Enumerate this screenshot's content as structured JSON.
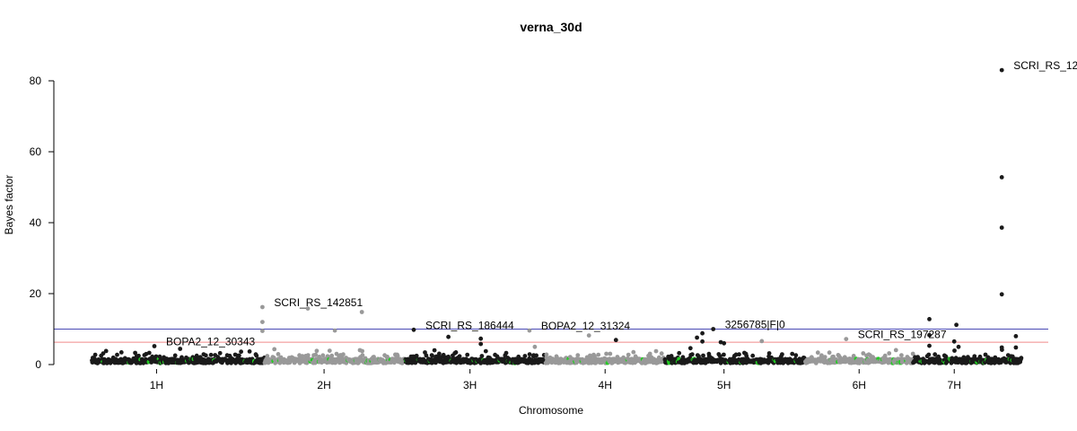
{
  "chart_data": {
    "type": "scatter",
    "title": "verna_30d",
    "xlabel": "Chromosome",
    "ylabel": "Bayes factor",
    "ylim": [
      0,
      80
    ],
    "yticks": [
      0,
      20,
      40,
      60,
      80
    ],
    "chromosomes": [
      {
        "name": "1H",
        "start": 0,
        "end": 1.6,
        "tick": 0.6,
        "color": "#1a1a1a"
      },
      {
        "name": "2H",
        "start": 1.6,
        "end": 2.9,
        "tick": 2.15,
        "color": "#999999"
      },
      {
        "name": "3H",
        "start": 2.9,
        "end": 4.2,
        "tick": 3.5,
        "color": "#1a1a1a"
      },
      {
        "name": "4H",
        "start": 4.2,
        "end": 5.3,
        "tick": 4.75,
        "color": "#999999"
      },
      {
        "name": "5H",
        "start": 5.3,
        "end": 6.6,
        "tick": 5.85,
        "color": "#1a1a1a"
      },
      {
        "name": "6H",
        "start": 6.6,
        "end": 7.6,
        "tick": 7.1,
        "color": "#999999"
      },
      {
        "name": "7H",
        "start": 7.6,
        "end": 8.6,
        "tick": 7.98,
        "color": "#1a1a1a"
      }
    ],
    "x_range": [
      -0.35,
      8.85
    ],
    "thresholds": [
      {
        "value": 10,
        "color": "#4a4ab4"
      },
      {
        "value": 6.3,
        "color": "#f08a8a"
      }
    ],
    "highlight_color": "#22cc22",
    "notable_points": [
      {
        "x": 0.58,
        "y": 5.2,
        "color": "#1a1a1a"
      },
      {
        "x": 1.58,
        "y": 16.2,
        "color": "#999999"
      },
      {
        "x": 1.58,
        "y": 12.0,
        "color": "#999999"
      },
      {
        "x": 1.58,
        "y": 9.5,
        "color": "#999999"
      },
      {
        "x": 2.0,
        "y": 15.8,
        "color": "#999999"
      },
      {
        "x": 2.25,
        "y": 9.6,
        "color": "#999999"
      },
      {
        "x": 2.5,
        "y": 14.8,
        "color": "#999999"
      },
      {
        "x": 2.98,
        "y": 9.8,
        "color": "#1a1a1a"
      },
      {
        "x": 3.3,
        "y": 7.8,
        "color": "#1a1a1a"
      },
      {
        "x": 3.6,
        "y": 7.3,
        "color": "#1a1a1a"
      },
      {
        "x": 3.6,
        "y": 5.8,
        "color": "#1a1a1a"
      },
      {
        "x": 4.05,
        "y": 9.6,
        "color": "#999999"
      },
      {
        "x": 4.1,
        "y": 5.0,
        "color": "#999999"
      },
      {
        "x": 4.6,
        "y": 8.2,
        "color": "#999999"
      },
      {
        "x": 4.85,
        "y": 6.9,
        "color": "#1a1a1a"
      },
      {
        "x": 5.6,
        "y": 7.6,
        "color": "#1a1a1a"
      },
      {
        "x": 5.65,
        "y": 8.8,
        "color": "#1a1a1a"
      },
      {
        "x": 5.65,
        "y": 6.5,
        "color": "#1a1a1a"
      },
      {
        "x": 5.75,
        "y": 10.0,
        "color": "#1a1a1a"
      },
      {
        "x": 5.82,
        "y": 6.3,
        "color": "#1a1a1a"
      },
      {
        "x": 5.85,
        "y": 6.0,
        "color": "#1a1a1a"
      },
      {
        "x": 6.2,
        "y": 6.6,
        "color": "#999999"
      },
      {
        "x": 6.98,
        "y": 7.2,
        "color": "#999999"
      },
      {
        "x": 7.75,
        "y": 12.8,
        "color": "#1a1a1a"
      },
      {
        "x": 7.75,
        "y": 8.3,
        "color": "#1a1a1a"
      },
      {
        "x": 7.75,
        "y": 5.3,
        "color": "#1a1a1a"
      },
      {
        "x": 8.0,
        "y": 11.2,
        "color": "#1a1a1a"
      },
      {
        "x": 7.98,
        "y": 6.5,
        "color": "#1a1a1a"
      },
      {
        "x": 8.02,
        "y": 5.0,
        "color": "#1a1a1a"
      },
      {
        "x": 8.42,
        "y": 83.0,
        "color": "#1a1a1a"
      },
      {
        "x": 8.42,
        "y": 52.8,
        "color": "#1a1a1a"
      },
      {
        "x": 8.42,
        "y": 38.6,
        "color": "#1a1a1a"
      },
      {
        "x": 8.42,
        "y": 19.8,
        "color": "#1a1a1a"
      },
      {
        "x": 8.42,
        "y": 4.8,
        "color": "#1a1a1a"
      },
      {
        "x": 8.55,
        "y": 8.0,
        "color": "#1a1a1a"
      },
      {
        "x": 8.55,
        "y": 4.8,
        "color": "#1a1a1a"
      }
    ],
    "annotations": [
      {
        "text": "SCRI_RS_12",
        "x": 8.42,
        "y": 83.0
      },
      {
        "text": "SCRI_RS_142851",
        "x": 1.58,
        "y": 16.2
      },
      {
        "text": "SCRI_RS_186444",
        "x": 2.98,
        "y": 9.8
      },
      {
        "text": "BOPA2_12_31324",
        "x": 4.05,
        "y": 9.6
      },
      {
        "text": "3256785|F|0",
        "x": 5.75,
        "y": 10.0
      },
      {
        "text": "SCRI_RS_197287",
        "x": 6.98,
        "y": 7.2
      },
      {
        "text": "BOPA2_12_30343",
        "x": 0.58,
        "y": 5.2
      }
    ]
  }
}
